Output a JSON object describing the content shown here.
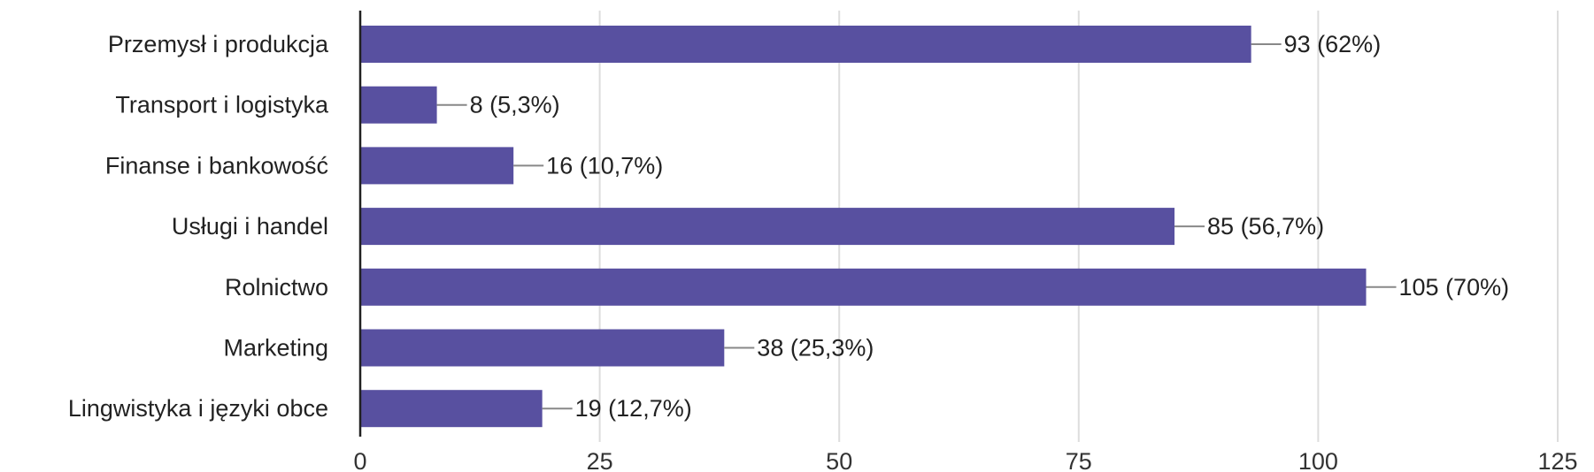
{
  "chart_data": {
    "type": "bar",
    "orientation": "horizontal",
    "categories": [
      "Przemysł i produkcja",
      "Transport i logistyka",
      "Finanse i bankowość",
      "Usługi i handel",
      "Rolnictwo",
      "Marketing",
      "Lingwistyka i języki obce"
    ],
    "values": [
      93,
      8,
      16,
      85,
      105,
      38,
      19
    ],
    "data_labels": [
      "93 (62%)",
      "8 (5,3%)",
      "16 (10,7%)",
      "85 (56,7%)",
      "105 (70%)",
      "38 (25,3%)",
      "19 (12,7%)"
    ],
    "xlim": [
      0,
      125
    ],
    "xticks": [
      0,
      25,
      50,
      75,
      100,
      125
    ],
    "xtick_labels": [
      "0",
      "25",
      "50",
      "75",
      "100",
      "125"
    ],
    "grid": true,
    "title": "",
    "xlabel": "",
    "ylabel": "",
    "colors": {
      "bar": "#5850a0",
      "grid": "#dddddd",
      "axis": "#222222",
      "leader": "#888888"
    }
  }
}
